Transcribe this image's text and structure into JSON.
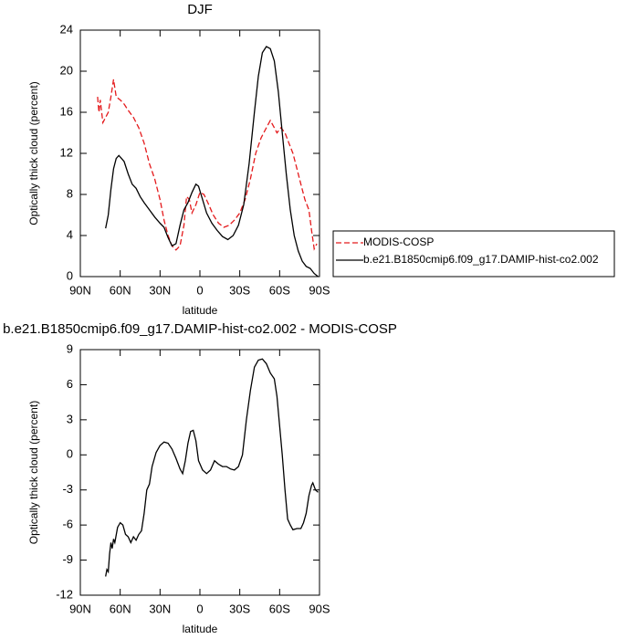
{
  "chart_data": [
    {
      "type": "line",
      "title": "DJF",
      "xlabel": "latitude",
      "ylabel": "Optically thick cloud (percent)",
      "xlim": [
        90,
        -90
      ],
      "xticks": [
        {
          "value": 90,
          "label": "90N"
        },
        {
          "value": 60,
          "label": "60N"
        },
        {
          "value": 30,
          "label": "30N"
        },
        0,
        {
          "value": -30,
          "label": "30S"
        },
        {
          "value": -60,
          "label": "60S"
        },
        {
          "value": -90,
          "label": "90S"
        }
      ],
      "ylim": [
        0,
        24
      ],
      "yticks": [
        0,
        4,
        8,
        12,
        16,
        20,
        24
      ],
      "legend": "right",
      "series": [
        {
          "name": "MODIS-COSP",
          "color": "#e41a1c",
          "dash": true,
          "x": [
            77,
            76,
            75,
            73,
            71,
            69,
            67,
            65,
            63,
            60,
            57,
            54,
            50,
            46,
            42,
            38,
            34,
            30,
            27,
            24,
            21,
            18,
            15,
            12,
            10,
            8,
            6,
            3,
            0,
            -3,
            -6,
            -10,
            -14,
            -18,
            -22,
            -26,
            -30,
            -34,
            -38,
            -42,
            -46,
            -50,
            -53,
            -56,
            -58,
            -61,
            -64,
            -67,
            -70,
            -73,
            -76,
            -79,
            -82,
            -84,
            -86,
            -88
          ],
          "values": [
            17.5,
            16,
            17.2,
            15,
            15.5,
            16,
            17.5,
            19.2,
            17.5,
            17.2,
            16.8,
            16.2,
            15.5,
            14.5,
            13,
            11,
            9.5,
            7.5,
            5.5,
            4,
            3,
            2.6,
            3,
            5,
            7.8,
            7.5,
            6.2,
            7,
            8.2,
            8,
            7.2,
            6,
            5.2,
            4.8,
            5,
            5.5,
            6.2,
            7.5,
            9.5,
            12,
            13.5,
            14.5,
            15.2,
            14.5,
            14,
            14.5,
            14,
            13,
            12,
            10.5,
            9,
            7.5,
            6.5,
            4.5,
            2.7,
            3.2
          ]
        },
        {
          "name": "b.e21.B1850cmip6.f09_g17.DAMIP-hist-co2.002",
          "color": "#000000",
          "dash": false,
          "x": [
            71,
            69,
            67,
            65,
            63,
            61,
            59,
            57,
            54,
            51,
            48,
            45,
            42,
            38,
            34,
            30,
            27,
            24,
            21,
            18,
            15,
            12,
            9,
            6,
            3,
            1,
            -2,
            -5,
            -9,
            -13,
            -17,
            -21,
            -25,
            -29,
            -33,
            -37,
            -41,
            -44,
            -47,
            -50,
            -53,
            -56,
            -59,
            -62,
            -65,
            -68,
            -71,
            -74,
            -77,
            -80,
            -83,
            -86,
            -89
          ],
          "values": [
            4.7,
            6,
            8.5,
            10.5,
            11.5,
            11.8,
            11.5,
            11.2,
            10,
            9,
            8.6,
            7.8,
            7.2,
            6.5,
            5.8,
            5.2,
            4.8,
            3.8,
            3,
            3.2,
            5,
            6.5,
            7.2,
            8.2,
            9,
            8.8,
            7.5,
            6.2,
            5.2,
            4.5,
            3.9,
            3.6,
            4,
            5,
            7,
            11,
            16,
            19.5,
            21.8,
            22.4,
            22.2,
            21,
            18,
            14,
            10,
            6.5,
            4,
            2.5,
            1.5,
            1,
            0.8,
            0.3,
            0
          ]
        }
      ]
    },
    {
      "type": "line",
      "title": "b.e21.B1850cmip6.f09_g17.DAMIP-hist-co2.002 - MODIS-COSP",
      "xlabel": "latitude",
      "ylabel": "Optically thick cloud (percent)",
      "xlim": [
        90,
        -90
      ],
      "xticks": [
        {
          "value": 90,
          "label": "90N"
        },
        {
          "value": 60,
          "label": "60N"
        },
        {
          "value": 30,
          "label": "30N"
        },
        0,
        {
          "value": -30,
          "label": "30S"
        },
        {
          "value": -60,
          "label": "60S"
        },
        {
          "value": -90,
          "label": "90S"
        }
      ],
      "ylim": [
        -12,
        9
      ],
      "yticks": [
        -12,
        -9,
        -6,
        -3,
        0,
        3,
        6,
        9
      ],
      "series": [
        {
          "color": "#000000",
          "dash": false,
          "x": [
            71,
            70,
            69,
            68,
            67,
            66,
            65,
            64,
            62,
            60,
            58,
            56,
            54,
            52,
            50,
            48,
            46,
            44,
            42,
            40,
            38,
            36,
            33,
            30,
            27,
            24,
            21,
            18,
            15,
            13,
            11,
            9,
            7,
            5,
            3,
            1,
            -2,
            -5,
            -8,
            -11,
            -14,
            -17,
            -20,
            -23,
            -26,
            -29,
            -32,
            -35,
            -38,
            -41,
            -44,
            -47,
            -50,
            -53,
            -56,
            -58,
            -60,
            -62,
            -64,
            -66,
            -68,
            -70,
            -73,
            -76,
            -78,
            -80,
            -82,
            -84,
            -85,
            -87,
            -89
          ],
          "values": [
            -10.4,
            -9.8,
            -10,
            -8.5,
            -7.5,
            -8,
            -7.2,
            -7.5,
            -6.2,
            -5.8,
            -6,
            -6.8,
            -7,
            -7.5,
            -7,
            -7.3,
            -6.8,
            -6.5,
            -5,
            -3,
            -2.5,
            -1,
            0.2,
            0.8,
            1.1,
            1,
            0.5,
            -0.3,
            -1.2,
            -1.6,
            -0.5,
            1,
            2,
            2.1,
            1.2,
            -0.5,
            -1.3,
            -1.6,
            -1.3,
            -0.5,
            -0.8,
            -1,
            -1,
            -1.2,
            -1.3,
            -1,
            0,
            3,
            5.5,
            7.5,
            8.1,
            8.2,
            7.8,
            7,
            6.5,
            5,
            2.5,
            0,
            -3,
            -5.5,
            -6,
            -6.4,
            -6.3,
            -6.3,
            -5.8,
            -5,
            -3.5,
            -2.6,
            -2.4,
            -3,
            -3.2
          ]
        }
      ]
    }
  ]
}
